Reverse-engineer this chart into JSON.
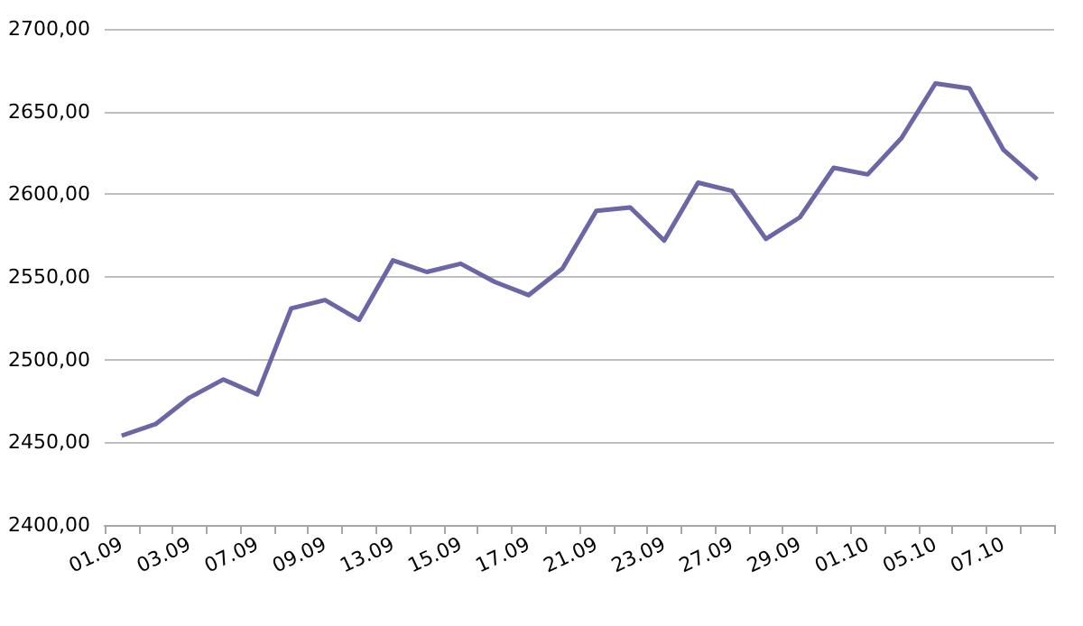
{
  "chart_data": {
    "type": "line",
    "categories": [
      "01.09",
      null,
      "03.09",
      null,
      "07.09",
      null,
      "09.09",
      null,
      "13.09",
      null,
      "15.09",
      null,
      "17.09",
      null,
      "21.09",
      null,
      "23.09",
      null,
      "27.09",
      null,
      "29.09",
      null,
      "01.10",
      null,
      "05.10",
      null,
      "07.10",
      null
    ],
    "series": [
      {
        "color": "#6b66a6",
        "values": [
          2454,
          2461,
          2477,
          2488,
          2479,
          2531,
          2536,
          2524,
          2560,
          2553,
          2558,
          2547,
          2539,
          2555,
          2590,
          2592,
          2572,
          2607,
          2602,
          2573,
          2586,
          2616,
          2612,
          2634,
          2667,
          2664,
          2627,
          2609
        ]
      }
    ],
    "ylim": [
      2400,
      2700
    ],
    "yticks": [
      {
        "value": 2400,
        "label": "2400,00"
      },
      {
        "value": 2450,
        "label": "2450,00"
      },
      {
        "value": 2500,
        "label": "2500,00"
      },
      {
        "value": 2550,
        "label": "2550,00"
      },
      {
        "value": 2600,
        "label": "2600,00"
      },
      {
        "value": 2650,
        "label": "2650,00"
      },
      {
        "value": 2700,
        "label": "2700,00"
      }
    ],
    "grid": "y",
    "marker": "none",
    "line_style": "solid"
  }
}
